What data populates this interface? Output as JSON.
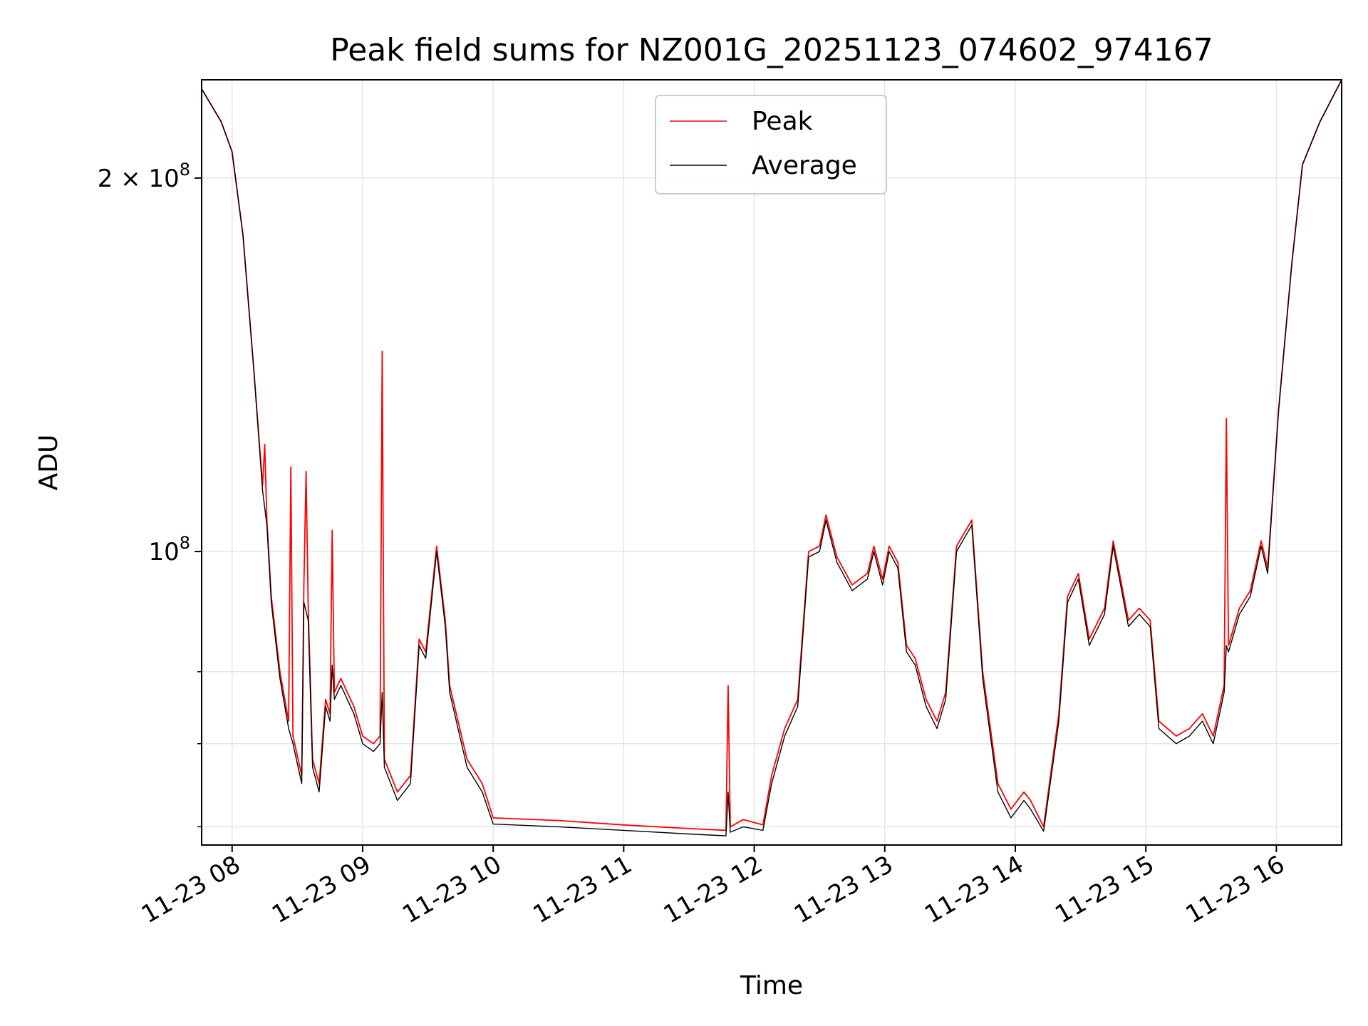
{
  "chart_data": {
    "type": "line",
    "title": "Peak field sums for NZ001G_20251123_074602_974167",
    "xlabel": "Time",
    "ylabel": "ADU",
    "yscale": "log",
    "grid": true,
    "legend_position": "top-center",
    "xlim": [
      "2025-11-23 07:46",
      "2025-11-23 16:30"
    ],
    "ylim": [
      58000000,
      240000000
    ],
    "x_ticks": [
      "11-23 08",
      "11-23 09",
      "11-23 10",
      "11-23 11",
      "11-23 12",
      "11-23 13",
      "11-23 14",
      "11-23 15",
      "11-23 16"
    ],
    "x_tick_times": [
      "2025-11-23 08:00",
      "2025-11-23 09:00",
      "2025-11-23 10:00",
      "2025-11-23 11:00",
      "2025-11-23 12:00",
      "2025-11-23 13:00",
      "2025-11-23 14:00",
      "2025-11-23 15:00",
      "2025-11-23 16:00"
    ],
    "y_major_ticks": [
      {
        "value": 100000000,
        "base": "10",
        "exp": "8"
      },
      {
        "value": 200000000,
        "base": "2 × 10",
        "exp": "8"
      }
    ],
    "y_minor_gridlines": [
      60000000,
      70000000,
      80000000
    ],
    "series": [
      {
        "name": "Peak",
        "color": "#ff0000",
        "points": [
          [
            "2025-11-23 07:46",
            236000000
          ],
          [
            "2025-11-23 07:55",
            222000000
          ],
          [
            "2025-11-23 08:00",
            210000000
          ],
          [
            "2025-11-23 08:05",
            180000000
          ],
          [
            "2025-11-23 08:10",
            140000000
          ],
          [
            "2025-11-23 08:14",
            113000000
          ],
          [
            "2025-11-23 08:15",
            122000000
          ],
          [
            "2025-11-23 08:16",
            106000000
          ],
          [
            "2025-11-23 08:18",
            92000000
          ],
          [
            "2025-11-23 08:22",
            80000000
          ],
          [
            "2025-11-23 08:26",
            73000000
          ],
          [
            "2025-11-23 08:27",
            117000000
          ],
          [
            "2025-11-23 08:28",
            71000000
          ],
          [
            "2025-11-23 08:32",
            66000000
          ],
          [
            "2025-11-23 08:33",
            94000000
          ],
          [
            "2025-11-23 08:34",
            116000000
          ],
          [
            "2025-11-23 08:35",
            90000000
          ],
          [
            "2025-11-23 08:37",
            68000000
          ],
          [
            "2025-11-23 08:40",
            65000000
          ],
          [
            "2025-11-23 08:43",
            76000000
          ],
          [
            "2025-11-23 08:45",
            74000000
          ],
          [
            "2025-11-23 08:46",
            104000000
          ],
          [
            "2025-11-23 08:47",
            77000000
          ],
          [
            "2025-11-23 08:50",
            79000000
          ],
          [
            "2025-11-23 08:56",
            75000000
          ],
          [
            "2025-11-23 09:00",
            71000000
          ],
          [
            "2025-11-23 09:05",
            70000000
          ],
          [
            "2025-11-23 09:08",
            71000000
          ],
          [
            "2025-11-23 09:09",
            145000000
          ],
          [
            "2025-11-23 09:10",
            68000000
          ],
          [
            "2025-11-23 09:16",
            64000000
          ],
          [
            "2025-11-23 09:22",
            66000000
          ],
          [
            "2025-11-23 09:26",
            85000000
          ],
          [
            "2025-11-23 09:29",
            83000000
          ],
          [
            "2025-11-23 09:34",
            101000000
          ],
          [
            "2025-11-23 09:38",
            88000000
          ],
          [
            "2025-11-23 09:40",
            78000000
          ],
          [
            "2025-11-23 09:48",
            68000000
          ],
          [
            "2025-11-23 09:55",
            65000000
          ],
          [
            "2025-11-23 10:00",
            61000000
          ],
          [
            "2025-11-23 10:30",
            60700000
          ],
          [
            "2025-11-23 11:00",
            60200000
          ],
          [
            "2025-11-23 11:30",
            59800000
          ],
          [
            "2025-11-23 11:47",
            59600000
          ],
          [
            "2025-11-23 11:48",
            78000000
          ],
          [
            "2025-11-23 11:49",
            60000000
          ],
          [
            "2025-11-23 11:55",
            60800000
          ],
          [
            "2025-11-23 12:04",
            60200000
          ],
          [
            "2025-11-23 12:08",
            66000000
          ],
          [
            "2025-11-23 12:14",
            72000000
          ],
          [
            "2025-11-23 12:20",
            76000000
          ],
          [
            "2025-11-23 12:25",
            100000000
          ],
          [
            "2025-11-23 12:30",
            101000000
          ],
          [
            "2025-11-23 12:33",
            107000000
          ],
          [
            "2025-11-23 12:38",
            99000000
          ],
          [
            "2025-11-23 12:45",
            94000000
          ],
          [
            "2025-11-23 12:52",
            96000000
          ],
          [
            "2025-11-23 12:55",
            101000000
          ],
          [
            "2025-11-23 12:59",
            95000000
          ],
          [
            "2025-11-23 13:02",
            101000000
          ],
          [
            "2025-11-23 13:06",
            98000000
          ],
          [
            "2025-11-23 13:10",
            84000000
          ],
          [
            "2025-11-23 13:14",
            82000000
          ],
          [
            "2025-11-23 13:19",
            76000000
          ],
          [
            "2025-11-23 13:24",
            73000000
          ],
          [
            "2025-11-23 13:28",
            77000000
          ],
          [
            "2025-11-23 13:33",
            101000000
          ],
          [
            "2025-11-23 13:40",
            106000000
          ],
          [
            "2025-11-23 13:45",
            80000000
          ],
          [
            "2025-11-23 13:52",
            65000000
          ],
          [
            "2025-11-23 13:58",
            62000000
          ],
          [
            "2025-11-23 14:04",
            64000000
          ],
          [
            "2025-11-23 14:07",
            63000000
          ],
          [
            "2025-11-23 14:13",
            60000000
          ],
          [
            "2025-11-23 14:20",
            74000000
          ],
          [
            "2025-11-23 14:24",
            92000000
          ],
          [
            "2025-11-23 14:29",
            96000000
          ],
          [
            "2025-11-23 14:34",
            85000000
          ],
          [
            "2025-11-23 14:41",
            90000000
          ],
          [
            "2025-11-23 14:45",
            102000000
          ],
          [
            "2025-11-23 14:52",
            88000000
          ],
          [
            "2025-11-23 14:57",
            90000000
          ],
          [
            "2025-11-23 15:02",
            88000000
          ],
          [
            "2025-11-23 15:06",
            73000000
          ],
          [
            "2025-11-23 15:14",
            71000000
          ],
          [
            "2025-11-23 15:20",
            72000000
          ],
          [
            "2025-11-23 15:26",
            74000000
          ],
          [
            "2025-11-23 15:31",
            71000000
          ],
          [
            "2025-11-23 15:36",
            78000000
          ],
          [
            "2025-11-23 15:37",
            128000000
          ],
          [
            "2025-11-23 15:38",
            84000000
          ],
          [
            "2025-11-23 15:43",
            90000000
          ],
          [
            "2025-11-23 15:48",
            93000000
          ],
          [
            "2025-11-23 15:53",
            102000000
          ],
          [
            "2025-11-23 15:56",
            97000000
          ],
          [
            "2025-11-23 16:01",
            130000000
          ],
          [
            "2025-11-23 16:07",
            170000000
          ],
          [
            "2025-11-23 16:12",
            205000000
          ],
          [
            "2025-11-23 16:20",
            222000000
          ],
          [
            "2025-11-23 16:30",
            240000000
          ]
        ]
      },
      {
        "name": "Average",
        "color": "#000000",
        "points": [
          [
            "2025-11-23 07:46",
            236000000
          ],
          [
            "2025-11-23 07:55",
            222000000
          ],
          [
            "2025-11-23 08:00",
            210000000
          ],
          [
            "2025-11-23 08:05",
            180000000
          ],
          [
            "2025-11-23 08:10",
            140000000
          ],
          [
            "2025-11-23 08:14",
            112000000
          ],
          [
            "2025-11-23 08:16",
            105000000
          ],
          [
            "2025-11-23 08:18",
            91000000
          ],
          [
            "2025-11-23 08:22",
            79000000
          ],
          [
            "2025-11-23 08:26",
            72000000
          ],
          [
            "2025-11-23 08:28",
            70000000
          ],
          [
            "2025-11-23 08:32",
            65000000
          ],
          [
            "2025-11-23 08:33",
            91000000
          ],
          [
            "2025-11-23 08:35",
            88000000
          ],
          [
            "2025-11-23 08:37",
            67000000
          ],
          [
            "2025-11-23 08:40",
            64000000
          ],
          [
            "2025-11-23 08:43",
            75000000
          ],
          [
            "2025-11-23 08:45",
            73000000
          ],
          [
            "2025-11-23 08:46",
            81000000
          ],
          [
            "2025-11-23 08:47",
            76000000
          ],
          [
            "2025-11-23 08:50",
            78000000
          ],
          [
            "2025-11-23 08:56",
            74000000
          ],
          [
            "2025-11-23 09:00",
            70000000
          ],
          [
            "2025-11-23 09:05",
            69000000
          ],
          [
            "2025-11-23 09:08",
            70000000
          ],
          [
            "2025-11-23 09:09",
            77000000
          ],
          [
            "2025-11-23 09:10",
            67000000
          ],
          [
            "2025-11-23 09:16",
            63000000
          ],
          [
            "2025-11-23 09:22",
            65000000
          ],
          [
            "2025-11-23 09:26",
            84000000
          ],
          [
            "2025-11-23 09:29",
            82000000
          ],
          [
            "2025-11-23 09:34",
            100000000
          ],
          [
            "2025-11-23 09:38",
            87000000
          ],
          [
            "2025-11-23 09:40",
            77000000
          ],
          [
            "2025-11-23 09:48",
            67000000
          ],
          [
            "2025-11-23 09:55",
            64000000
          ],
          [
            "2025-11-23 10:00",
            60300000
          ],
          [
            "2025-11-23 10:30",
            60000000
          ],
          [
            "2025-11-23 11:00",
            59600000
          ],
          [
            "2025-11-23 11:30",
            59200000
          ],
          [
            "2025-11-23 11:47",
            59000000
          ],
          [
            "2025-11-23 11:48",
            64000000
          ],
          [
            "2025-11-23 11:49",
            59400000
          ],
          [
            "2025-11-23 11:55",
            60000000
          ],
          [
            "2025-11-23 12:04",
            59600000
          ],
          [
            "2025-11-23 12:08",
            65000000
          ],
          [
            "2025-11-23 12:14",
            71000000
          ],
          [
            "2025-11-23 12:20",
            75000000
          ],
          [
            "2025-11-23 12:25",
            99000000
          ],
          [
            "2025-11-23 12:30",
            100000000
          ],
          [
            "2025-11-23 12:33",
            106000000
          ],
          [
            "2025-11-23 12:38",
            98000000
          ],
          [
            "2025-11-23 12:45",
            93000000
          ],
          [
            "2025-11-23 12:52",
            95000000
          ],
          [
            "2025-11-23 12:55",
            100000000
          ],
          [
            "2025-11-23 12:59",
            94000000
          ],
          [
            "2025-11-23 13:02",
            100000000
          ],
          [
            "2025-11-23 13:06",
            97000000
          ],
          [
            "2025-11-23 13:10",
            83000000
          ],
          [
            "2025-11-23 13:14",
            81000000
          ],
          [
            "2025-11-23 13:19",
            75000000
          ],
          [
            "2025-11-23 13:24",
            72000000
          ],
          [
            "2025-11-23 13:28",
            76000000
          ],
          [
            "2025-11-23 13:33",
            100000000
          ],
          [
            "2025-11-23 13:40",
            105000000
          ],
          [
            "2025-11-23 13:45",
            79000000
          ],
          [
            "2025-11-23 13:52",
            64000000
          ],
          [
            "2025-11-23 13:58",
            61000000
          ],
          [
            "2025-11-23 14:04",
            63000000
          ],
          [
            "2025-11-23 14:07",
            62000000
          ],
          [
            "2025-11-23 14:13",
            59500000
          ],
          [
            "2025-11-23 14:20",
            73000000
          ],
          [
            "2025-11-23 14:24",
            91000000
          ],
          [
            "2025-11-23 14:29",
            95000000
          ],
          [
            "2025-11-23 14:34",
            84000000
          ],
          [
            "2025-11-23 14:41",
            89000000
          ],
          [
            "2025-11-23 14:45",
            101000000
          ],
          [
            "2025-11-23 14:52",
            87000000
          ],
          [
            "2025-11-23 14:57",
            89000000
          ],
          [
            "2025-11-23 15:02",
            87000000
          ],
          [
            "2025-11-23 15:06",
            72000000
          ],
          [
            "2025-11-23 15:14",
            70000000
          ],
          [
            "2025-11-23 15:20",
            71000000
          ],
          [
            "2025-11-23 15:26",
            73000000
          ],
          [
            "2025-11-23 15:31",
            70000000
          ],
          [
            "2025-11-23 15:36",
            77000000
          ],
          [
            "2025-11-23 15:37",
            84000000
          ],
          [
            "2025-11-23 15:38",
            83000000
          ],
          [
            "2025-11-23 15:43",
            89000000
          ],
          [
            "2025-11-23 15:48",
            92000000
          ],
          [
            "2025-11-23 15:53",
            101000000
          ],
          [
            "2025-11-23 15:56",
            96000000
          ],
          [
            "2025-11-23 16:01",
            130000000
          ],
          [
            "2025-11-23 16:07",
            170000000
          ],
          [
            "2025-11-23 16:12",
            205000000
          ],
          [
            "2025-11-23 16:20",
            222000000
          ],
          [
            "2025-11-23 16:30",
            240000000
          ]
        ]
      }
    ]
  }
}
